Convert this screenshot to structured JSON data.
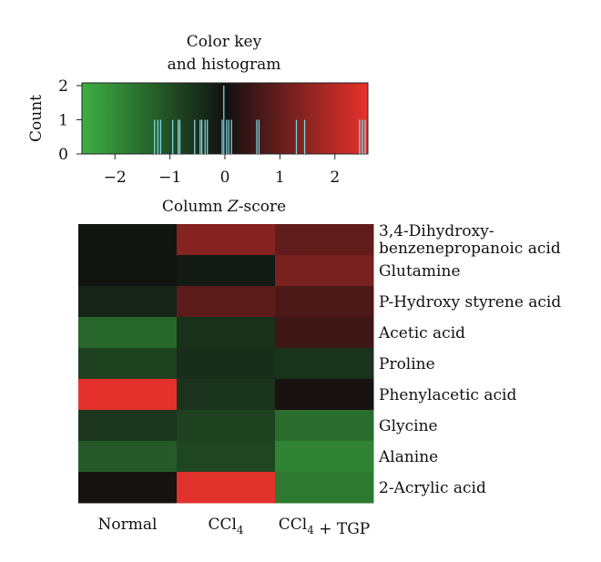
{
  "chart_data": [
    {
      "type": "histogram",
      "title": "Color key\nand histogram",
      "xlabel_prefix": "Column ",
      "xlabel_italic": "Z",
      "xlabel_suffix": "-score",
      "ylabel": "Count",
      "xlim": [
        -2.6,
        2.6
      ],
      "ylim": [
        0,
        2
      ],
      "xticks": [
        -2,
        -1,
        0,
        1,
        2
      ],
      "yticks": [
        0,
        1,
        2
      ],
      "color_low": "#3cb043",
      "color_mid": "#111111",
      "color_high": "#e8322c",
      "histogram_line_color": "#7fd4dc",
      "values": [
        {
          "z": -1.28,
          "count": 1
        },
        {
          "z": -1.22,
          "count": 1
        },
        {
          "z": -1.17,
          "count": 1
        },
        {
          "z": -0.95,
          "count": 1
        },
        {
          "z": -0.85,
          "count": 1
        },
        {
          "z": -0.82,
          "count": 1
        },
        {
          "z": -0.55,
          "count": 1
        },
        {
          "z": -0.45,
          "count": 1
        },
        {
          "z": -0.42,
          "count": 1
        },
        {
          "z": -0.36,
          "count": 1
        },
        {
          "z": -0.32,
          "count": 1
        },
        {
          "z": -0.05,
          "count": 1
        },
        {
          "z": -0.02,
          "count": 2
        },
        {
          "z": 0.03,
          "count": 1
        },
        {
          "z": 0.07,
          "count": 1
        },
        {
          "z": 0.12,
          "count": 1
        },
        {
          "z": 0.58,
          "count": 1
        },
        {
          "z": 0.62,
          "count": 1
        },
        {
          "z": 1.3,
          "count": 1
        },
        {
          "z": 1.45,
          "count": 1
        },
        {
          "z": 2.45,
          "count": 1
        },
        {
          "z": 2.5,
          "count": 1
        },
        {
          "z": 2.55,
          "count": 1
        }
      ]
    },
    {
      "type": "heatmap",
      "columns": [
        "Normal",
        "CCl₄",
        "CCl₄ + TGP"
      ],
      "rows": [
        "3,4-Dihydroxy-\nbenzenepropanoic acid",
        "Glutamine",
        "P-Hydroxy styrene acid",
        "Acetic acid",
        "Proline",
        "Phenylacetic acid",
        "Glycine",
        "Alanine",
        "2-Acrylic acid"
      ],
      "zscores": [
        [
          -0.05,
          1.4,
          0.95
        ],
        [
          -0.05,
          -0.15,
          1.25
        ],
        [
          -0.3,
          0.9,
          0.7
        ],
        [
          -1.4,
          -0.5,
          0.55
        ],
        [
          -0.8,
          -0.45,
          -0.55
        ],
        [
          2.55,
          -0.55,
          0.1
        ],
        [
          -0.6,
          -0.8,
          -1.5
        ],
        [
          -1.2,
          -0.85,
          -1.85
        ],
        [
          0.05,
          2.5,
          -1.7
        ]
      ]
    }
  ]
}
